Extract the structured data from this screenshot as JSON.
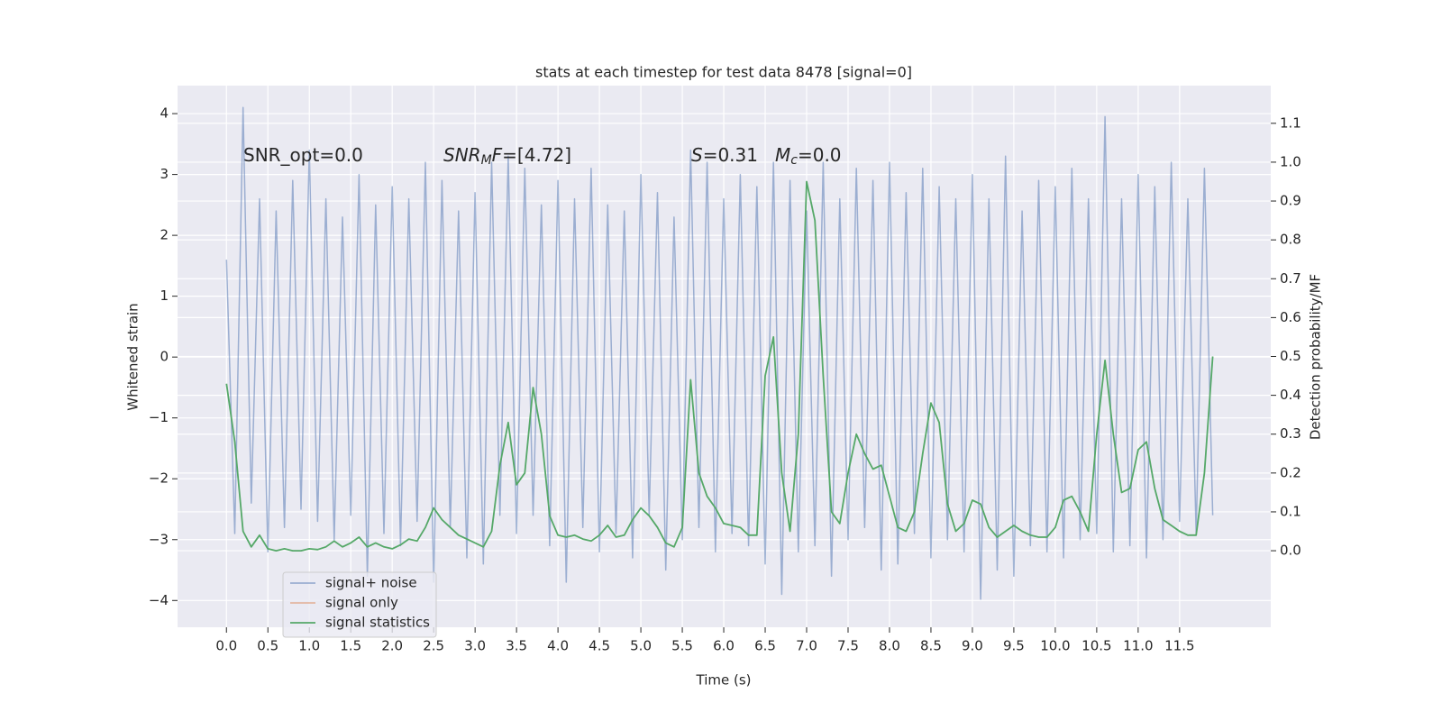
{
  "chart_data": {
    "type": "line",
    "title": "stats at each timestep for test data 8478 [signal=0]",
    "xlabel": "Time (s)",
    "ylabel": "Whitened strain",
    "y2label": "Detection probability/MF",
    "annotations": [
      [
        {
          "text": "SNR_opt=0.0"
        }
      ],
      [
        {
          "text": "SNR",
          "style": "italic"
        },
        {
          "text": "M",
          "style": "italic-sub"
        },
        {
          "text": "F",
          "style": "italic"
        },
        {
          "text": "=[4.72]"
        }
      ],
      [
        {
          "text": "S",
          "style": "italic"
        },
        {
          "text": "=0.31"
        }
      ],
      [
        {
          "text": "M",
          "style": "italic"
        },
        {
          "text": "c",
          "style": "italic-sub"
        },
        {
          "text": "=0.0"
        }
      ]
    ],
    "x": [
      0.0,
      0.1,
      0.2,
      0.3,
      0.4,
      0.5,
      0.6,
      0.7,
      0.8,
      0.9,
      1.0,
      1.1,
      1.2,
      1.3,
      1.4,
      1.5,
      1.6,
      1.7,
      1.8,
      1.9,
      2.0,
      2.1,
      2.2,
      2.3,
      2.4,
      2.5,
      2.6,
      2.7,
      2.8,
      2.9,
      3.0,
      3.1,
      3.2,
      3.3,
      3.4,
      3.5,
      3.6,
      3.7,
      3.8,
      3.9,
      4.0,
      4.1,
      4.2,
      4.3,
      4.4,
      4.5,
      4.6,
      4.7,
      4.8,
      4.9,
      5.0,
      5.1,
      5.2,
      5.3,
      5.4,
      5.5,
      5.6,
      5.7,
      5.8,
      5.9,
      6.0,
      6.1,
      6.2,
      6.3,
      6.4,
      6.5,
      6.6,
      6.7,
      6.8,
      6.9,
      7.0,
      7.1,
      7.2,
      7.3,
      7.4,
      7.5,
      7.6,
      7.7,
      7.8,
      7.9,
      8.0,
      8.1,
      8.2,
      8.3,
      8.4,
      8.5,
      8.6,
      8.7,
      8.8,
      8.9,
      9.0,
      9.1,
      9.2,
      9.3,
      9.4,
      9.5,
      9.6,
      9.7,
      9.8,
      9.9,
      10.0,
      10.1,
      10.2,
      10.3,
      10.4,
      10.5,
      10.6,
      10.7,
      10.8,
      10.9,
      11.0,
      11.1,
      11.2,
      11.3,
      11.4,
      11.5,
      11.6,
      11.7,
      11.8,
      11.9
    ],
    "series": [
      {
        "name": "signal+ noise",
        "color": "#4c72b0",
        "opacity": 0.5,
        "values": [
          1.6,
          -2.9,
          4.1,
          -2.4,
          2.6,
          -3.2,
          2.4,
          -2.8,
          2.9,
          -2.5,
          3.4,
          -2.7,
          2.6,
          -3.0,
          2.3,
          -2.6,
          3.0,
          -3.6,
          2.5,
          -2.9,
          2.8,
          -3.1,
          2.6,
          -2.7,
          3.2,
          -3.7,
          2.9,
          -2.8,
          2.4,
          -3.3,
          2.7,
          -3.4,
          3.2,
          -2.6,
          3.3,
          -2.9,
          3.1,
          -2.6,
          2.5,
          -3.1,
          2.9,
          -3.7,
          2.6,
          -2.8,
          3.1,
          -3.2,
          2.5,
          -2.9,
          2.4,
          -3.3,
          3.0,
          -2.6,
          2.7,
          -3.5,
          2.3,
          -3.0,
          3.4,
          -2.8,
          3.2,
          -3.2,
          2.6,
          -2.9,
          3.0,
          -3.1,
          2.8,
          -3.4,
          3.2,
          -3.9,
          2.9,
          -3.2,
          2.4,
          -3.1,
          3.2,
          -3.6,
          2.6,
          -3.0,
          3.1,
          -2.8,
          2.9,
          -3.5,
          3.2,
          -3.4,
          2.7,
          -2.9,
          3.1,
          -3.3,
          2.8,
          -3.0,
          2.6,
          -3.2,
          3.0,
          -3.98,
          2.6,
          -3.5,
          3.3,
          -3.6,
          2.4,
          -3.1,
          2.9,
          -3.2,
          2.8,
          -3.3,
          3.1,
          -3.0,
          2.6,
          -2.9,
          3.95,
          -3.2,
          2.6,
          -3.1,
          3.0,
          -3.3,
          2.8,
          -3.0,
          3.2,
          -2.7,
          2.6,
          -2.9,
          3.1,
          -2.6
        ]
      },
      {
        "name": "signal only",
        "color": "#dd8452",
        "opacity": 0.5,
        "values": [
          null,
          null,
          null,
          null,
          null,
          null,
          null,
          null,
          null,
          null,
          null,
          null,
          null,
          null,
          null,
          null,
          null,
          null,
          null,
          null,
          null,
          null,
          null,
          null,
          null,
          null,
          null,
          null,
          null,
          null,
          null,
          null,
          null,
          null,
          null,
          null,
          null,
          null,
          null,
          null,
          null,
          null,
          null,
          null,
          null,
          null,
          null,
          null,
          null,
          null,
          null,
          null,
          null,
          null,
          null,
          null,
          null,
          null,
          null,
          null,
          null,
          null,
          null,
          null,
          null,
          null,
          null,
          null,
          null,
          null,
          null,
          null,
          null,
          null,
          null,
          null,
          null,
          null,
          null,
          null,
          null,
          null,
          null,
          null,
          null,
          null,
          null,
          null,
          null,
          null,
          null,
          null,
          null,
          null,
          null,
          null,
          null,
          null,
          null,
          null,
          null,
          null,
          null,
          null,
          null,
          null,
          null,
          null,
          null,
          null,
          null,
          null,
          null,
          null,
          null,
          null,
          null,
          null,
          null,
          null
        ]
      },
      {
        "name": "signal statistics",
        "color": "#55a868",
        "opacity": 1,
        "axis": "y2",
        "values": [
          0.43,
          0.28,
          0.05,
          0.01,
          0.04,
          0.005,
          0.0,
          0.005,
          0.0,
          0.0,
          0.005,
          0.003,
          0.01,
          0.025,
          0.01,
          0.02,
          0.035,
          0.01,
          0.02,
          0.01,
          0.005,
          0.015,
          0.03,
          0.025,
          0.06,
          0.11,
          0.08,
          0.06,
          0.04,
          0.03,
          0.02,
          0.01,
          0.05,
          0.22,
          0.33,
          0.17,
          0.2,
          0.42,
          0.3,
          0.09,
          0.04,
          0.035,
          0.04,
          0.03,
          0.025,
          0.04,
          0.065,
          0.035,
          0.04,
          0.08,
          0.11,
          0.09,
          0.06,
          0.02,
          0.01,
          0.06,
          0.44,
          0.2,
          0.14,
          0.11,
          0.07,
          0.065,
          0.06,
          0.04,
          0.04,
          0.45,
          0.55,
          0.2,
          0.05,
          0.3,
          0.95,
          0.85,
          0.45,
          0.1,
          0.07,
          0.2,
          0.3,
          0.25,
          0.21,
          0.22,
          0.14,
          0.06,
          0.05,
          0.1,
          0.25,
          0.38,
          0.33,
          0.12,
          0.05,
          0.07,
          0.13,
          0.12,
          0.06,
          0.035,
          0.05,
          0.065,
          0.05,
          0.04,
          0.035,
          0.035,
          0.06,
          0.13,
          0.14,
          0.1,
          0.05,
          0.3,
          0.49,
          0.3,
          0.15,
          0.16,
          0.26,
          0.28,
          0.16,
          0.08,
          0.065,
          0.05,
          0.04,
          0.04,
          0.2,
          0.5
        ]
      }
    ],
    "xlim": [
      -0.59,
      12.6
    ],
    "ylim": [
      -4.44,
      4.46
    ],
    "y2lim": [
      -0.197,
      1.197
    ],
    "xticks": [
      {
        "value": 0,
        "label": "0.0"
      },
      0.5,
      {
        "value": 1,
        "label": "1.0"
      },
      1.5,
      {
        "value": 2,
        "label": "2.0"
      },
      2.5,
      {
        "value": 3,
        "label": "3.0"
      },
      3.5,
      {
        "value": 4,
        "label": "4.0"
      },
      4.5,
      {
        "value": 5,
        "label": "5.0"
      },
      5.5,
      {
        "value": 6,
        "label": "6.0"
      },
      6.5,
      {
        "value": 7,
        "label": "7.0"
      },
      7.5,
      {
        "value": 8,
        "label": "8.0"
      },
      8.5,
      {
        "value": 9,
        "label": "9.0"
      },
      9.5,
      {
        "value": 10,
        "label": "10.0"
      },
      10.5,
      {
        "value": 11,
        "label": "11.0"
      },
      11.5
    ],
    "yticks": [
      {
        "value": -4,
        "label": "−4"
      },
      {
        "value": -3,
        "label": "−3"
      },
      {
        "value": -2,
        "label": "−2"
      },
      {
        "value": -1,
        "label": "−1"
      },
      0,
      1,
      2,
      3,
      4
    ],
    "y2ticks": [
      {
        "value": 0,
        "label": "0.0"
      },
      0.1,
      0.2,
      0.3,
      0.4,
      0.5,
      0.6,
      0.7,
      0.8,
      0.9,
      {
        "value": 1,
        "label": "1.0"
      },
      1.1
    ],
    "grid": true,
    "legend_loc": "lower left"
  }
}
